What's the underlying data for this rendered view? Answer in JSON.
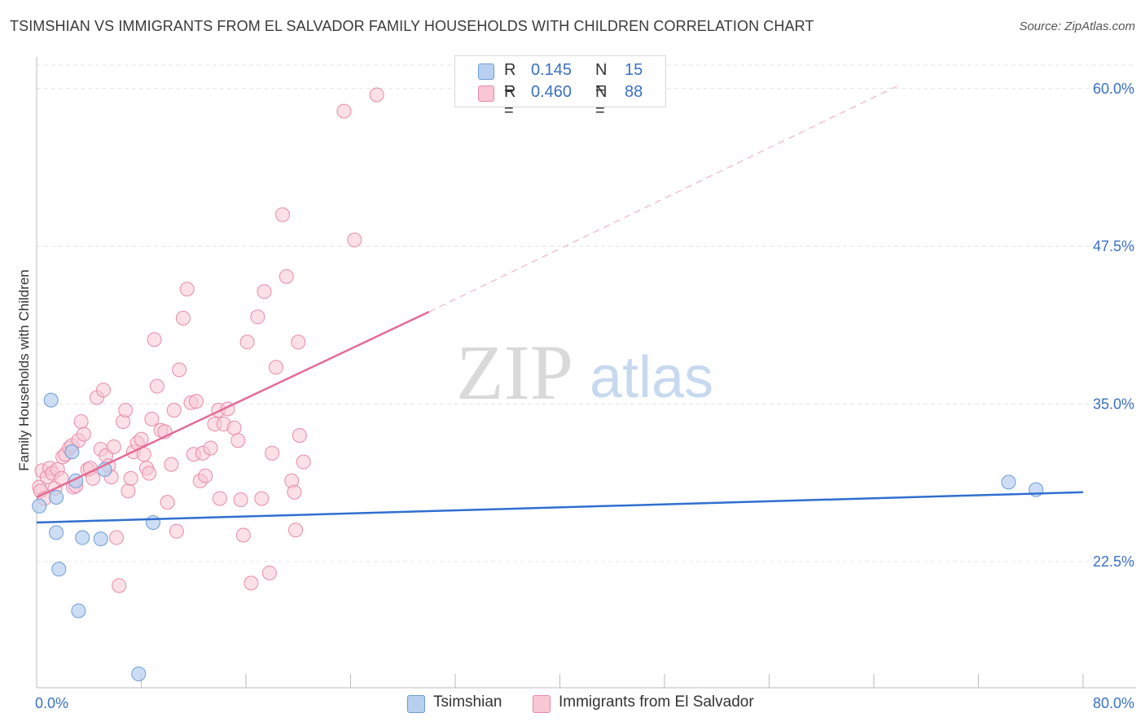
{
  "title": "TSIMSHIAN VS IMMIGRANTS FROM EL SALVADOR FAMILY HOUSEHOLDS WITH CHILDREN CORRELATION CHART",
  "source": "Source: ZipAtlas.com",
  "watermark": {
    "zip": "ZIP",
    "atlas": "atlas"
  },
  "legend": {
    "r_label": "R =",
    "n_label": "N =",
    "series": [
      {
        "name": "Tsimshian",
        "r": "0.145",
        "n": "15",
        "fill": "#b8d0f0",
        "stroke": "#6c9bd6"
      },
      {
        "name": "Immigrants from El Salvador",
        "r": "0.460",
        "n": "88",
        "fill": "#f8c6d5",
        "stroke": "#e98aa8"
      }
    ]
  },
  "chart_data": {
    "type": "scatter",
    "title": "TSIMSHIAN VS IMMIGRANTS FROM EL SALVADOR FAMILY HOUSEHOLDS WITH CHILDREN CORRELATION CHART",
    "xlabel": "",
    "ylabel": "Family Households with Children",
    "xlim": [
      0,
      80
    ],
    "ylim": [
      12.5,
      62.5
    ],
    "x_tick_labels": [
      "0.0%",
      "80.0%"
    ],
    "y_ticks": [
      22.5,
      35.0,
      47.5,
      60.0
    ],
    "y_tick_labels": [
      "22.5%",
      "35.0%",
      "47.5%",
      "60.0%"
    ],
    "colors": {
      "tsimshian_line": "#2f6fd0",
      "salvador_line": "#e46b95",
      "axis_text": "#3a70c2",
      "grid": "#e4e4e4"
    },
    "series": [
      {
        "name": "Tsimshian",
        "trend": {
          "x": [
            0,
            80
          ],
          "y": [
            25.6,
            28.0
          ]
        },
        "points": [
          [
            1.1,
            35.3
          ],
          [
            2.7,
            31.2
          ],
          [
            1.5,
            27.6
          ],
          [
            0.2,
            26.9
          ],
          [
            3.0,
            28.9
          ],
          [
            5.2,
            29.8
          ],
          [
            1.5,
            24.8
          ],
          [
            3.5,
            24.4
          ],
          [
            4.9,
            24.3
          ],
          [
            8.9,
            25.6
          ],
          [
            1.7,
            21.9
          ],
          [
            3.2,
            18.6
          ],
          [
            7.8,
            13.6
          ],
          [
            74.3,
            28.8
          ],
          [
            76.4,
            28.2
          ]
        ]
      },
      {
        "name": "Immigrants from El Salvador",
        "trend": {
          "x": [
            0,
            30
          ],
          "y": [
            27.6,
            42.3
          ],
          "dashed_extension_to": {
            "x": 66,
            "y": 60.3
          }
        },
        "points": [
          [
            0.2,
            28.4
          ],
          [
            0.3,
            28.1
          ],
          [
            0.4,
            29.7
          ],
          [
            0.6,
            27.5
          ],
          [
            0.8,
            29.2
          ],
          [
            1.0,
            29.9
          ],
          [
            1.2,
            29.5
          ],
          [
            1.4,
            28.3
          ],
          [
            1.6,
            29.8
          ],
          [
            1.9,
            29.1
          ],
          [
            2.0,
            30.8
          ],
          [
            2.2,
            31.0
          ],
          [
            2.5,
            31.5
          ],
          [
            2.7,
            31.7
          ],
          [
            2.8,
            28.4
          ],
          [
            3.0,
            28.5
          ],
          [
            3.2,
            32.1
          ],
          [
            3.4,
            33.6
          ],
          [
            3.6,
            32.6
          ],
          [
            3.9,
            29.8
          ],
          [
            4.1,
            29.9
          ],
          [
            4.3,
            29.1
          ],
          [
            4.6,
            35.5
          ],
          [
            4.9,
            31.4
          ],
          [
            5.1,
            36.1
          ],
          [
            5.3,
            30.9
          ],
          [
            5.5,
            30.1
          ],
          [
            5.7,
            29.2
          ],
          [
            5.9,
            31.6
          ],
          [
            6.1,
            24.4
          ],
          [
            6.3,
            20.6
          ],
          [
            6.6,
            33.6
          ],
          [
            6.8,
            34.5
          ],
          [
            7.0,
            28.1
          ],
          [
            7.2,
            29.1
          ],
          [
            7.4,
            31.2
          ],
          [
            7.7,
            31.9
          ],
          [
            8.0,
            32.2
          ],
          [
            8.2,
            31.0
          ],
          [
            8.4,
            29.9
          ],
          [
            8.6,
            29.5
          ],
          [
            8.8,
            33.8
          ],
          [
            9.0,
            40.1
          ],
          [
            9.2,
            36.4
          ],
          [
            9.5,
            32.9
          ],
          [
            9.8,
            32.8
          ],
          [
            10.0,
            27.2
          ],
          [
            10.3,
            30.2
          ],
          [
            10.5,
            34.5
          ],
          [
            10.7,
            24.9
          ],
          [
            10.9,
            37.7
          ],
          [
            11.2,
            41.8
          ],
          [
            11.5,
            44.1
          ],
          [
            11.8,
            35.1
          ],
          [
            12.0,
            31.0
          ],
          [
            12.2,
            35.2
          ],
          [
            12.5,
            28.9
          ],
          [
            12.7,
            31.1
          ],
          [
            12.9,
            29.3
          ],
          [
            13.3,
            31.5
          ],
          [
            13.6,
            33.4
          ],
          [
            13.9,
            34.5
          ],
          [
            14.0,
            27.5
          ],
          [
            14.3,
            33.4
          ],
          [
            14.6,
            34.6
          ],
          [
            15.1,
            33.1
          ],
          [
            15.4,
            32.1
          ],
          [
            15.6,
            27.4
          ],
          [
            15.8,
            24.6
          ],
          [
            16.1,
            39.9
          ],
          [
            16.4,
            20.8
          ],
          [
            16.9,
            41.9
          ],
          [
            17.2,
            27.5
          ],
          [
            17.4,
            43.9
          ],
          [
            17.8,
            21.6
          ],
          [
            18.0,
            31.1
          ],
          [
            18.3,
            37.9
          ],
          [
            18.8,
            50.0
          ],
          [
            19.1,
            45.1
          ],
          [
            19.5,
            28.9
          ],
          [
            19.8,
            25.0
          ],
          [
            20.1,
            32.5
          ],
          [
            20.4,
            30.4
          ],
          [
            20.0,
            39.9
          ],
          [
            19.7,
            28.0
          ],
          [
            24.3,
            48.0
          ],
          [
            23.5,
            58.2
          ],
          [
            26.0,
            59.5
          ]
        ]
      }
    ]
  }
}
